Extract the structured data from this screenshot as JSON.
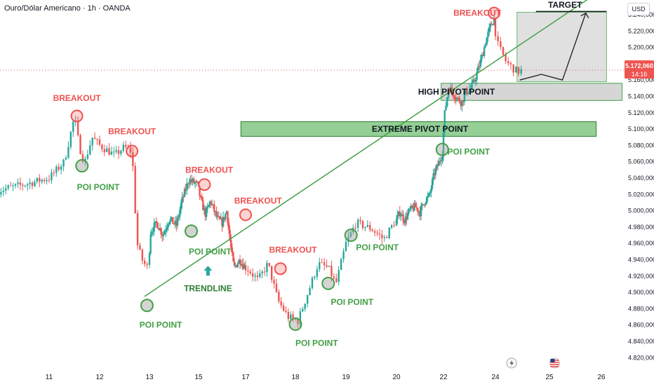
{
  "header": {
    "title": "Ouro/Dólar Americano · 1h · OANDA"
  },
  "currency": "USD",
  "colors": {
    "up": "#26a69a",
    "down": "#ef5350",
    "breakout": "#ef5350",
    "poi": "#43a047",
    "trendline": "#43a047",
    "pivot": "#c8c8c8",
    "extreme": "#81c784",
    "target_box": "#e0e0e0"
  },
  "price_badge": {
    "price": "5.172,060",
    "countdown": "14:16"
  },
  "icons": {
    "flash": "lightning-icon",
    "flag": "us-flag-icon",
    "arrow": "arrow-up-icon"
  },
  "chart_data": {
    "type": "candlestick",
    "title": "",
    "xlabel": "",
    "ylabel": "",
    "ylim": [
      4810,
      5258
    ],
    "y_ticks": [
      "4.820,000",
      "4.840,000",
      "4.860,000",
      "4.880,000",
      "4.900,000",
      "4.920,000",
      "4.940,000",
      "4.960,000",
      "4.980,000",
      "5.000,000",
      "5.020,000",
      "5.040,000",
      "5.060,000",
      "5.080,000",
      "5.100,000",
      "5.120,000",
      "5.140,000",
      "5.160,000",
      "5.180,000",
      "5.200,000",
      "5.220,000",
      "5.240,000"
    ],
    "y_tick_values": [
      4820,
      4840,
      4860,
      4880,
      4900,
      4920,
      4940,
      4960,
      4980,
      5000,
      5020,
      5040,
      5060,
      5080,
      5100,
      5120,
      5140,
      5160,
      5180,
      5200,
      5220,
      5240
    ],
    "x_ticks": [
      "11",
      "12",
      "13",
      "15",
      "17",
      "18",
      "19",
      "20",
      "22",
      "24",
      "25",
      "26"
    ],
    "x_tick_days": [
      11,
      12,
      13,
      15,
      17,
      18,
      19,
      20,
      22,
      24,
      25,
      26
    ],
    "current_price": 5172.06,
    "path_keypoints": [
      [
        10.0,
        5025
      ],
      [
        10.5,
        5032
      ],
      [
        11.0,
        5040
      ],
      [
        11.3,
        5060
      ],
      [
        11.5,
        5115
      ],
      [
        11.6,
        5078
      ],
      [
        11.7,
        5058
      ],
      [
        11.85,
        5090
      ],
      [
        12.0,
        5080
      ],
      [
        12.3,
        5068
      ],
      [
        12.5,
        5078
      ],
      [
        12.65,
        5072
      ],
      [
        12.75,
        4960
      ],
      [
        12.85,
        4940
      ],
      [
        12.95,
        4930
      ],
      [
        13.05,
        4975
      ],
      [
        13.3,
        4985
      ],
      [
        13.55,
        4970
      ],
      [
        13.8,
        4990
      ],
      [
        14.1,
        4982
      ],
      [
        14.3,
        5010
      ],
      [
        14.6,
        5038
      ],
      [
        14.95,
        5032
      ],
      [
        15.1,
        5012
      ],
      [
        15.3,
        4995
      ],
      [
        15.5,
        5012
      ],
      [
        15.8,
        4990
      ],
      [
        16.0,
        4985
      ],
      [
        16.2,
        5000
      ],
      [
        16.35,
        4960
      ],
      [
        16.5,
        4930
      ],
      [
        16.75,
        4940
      ],
      [
        17.05,
        4928
      ],
      [
        17.25,
        4915
      ],
      [
        17.45,
        4935
      ],
      [
        17.65,
        4890
      ],
      [
        17.85,
        4870
      ],
      [
        18.05,
        4865
      ],
      [
        18.25,
        4900
      ],
      [
        18.45,
        4935
      ],
      [
        18.65,
        4930
      ],
      [
        18.8,
        4910
      ],
      [
        19.0,
        4960
      ],
      [
        19.2,
        4985
      ],
      [
        19.5,
        4978
      ],
      [
        19.75,
        4965
      ],
      [
        19.95,
        4985
      ],
      [
        20.15,
        4998
      ],
      [
        20.35,
        4988
      ],
      [
        20.55,
        5000
      ],
      [
        20.8,
        5005
      ],
      [
        21.0,
        4998
      ],
      [
        21.2,
        5012
      ],
      [
        21.4,
        5018
      ],
      [
        21.6,
        5045
      ],
      [
        21.8,
        5058
      ],
      [
        21.95,
        5070
      ],
      [
        22.05,
        5120
      ],
      [
        22.2,
        5152
      ],
      [
        22.45,
        5140
      ],
      [
        22.7,
        5132
      ],
      [
        22.85,
        5145
      ],
      [
        23.05,
        5150
      ],
      [
        23.2,
        5160
      ],
      [
        23.45,
        5185
      ],
      [
        23.65,
        5210
      ],
      [
        23.8,
        5225
      ],
      [
        23.95,
        5235
      ],
      [
        24.05,
        5202
      ],
      [
        24.2,
        5182
      ],
      [
        24.4,
        5170
      ],
      [
        24.5,
        5172
      ]
    ],
    "projection": [
      [
        24.45,
        5160
      ],
      [
        24.85,
        5167
      ],
      [
        25.25,
        5160
      ],
      [
        25.7,
        5242
      ]
    ],
    "trendline": [
      [
        12.9,
        4895
      ],
      [
        26.0,
        5270
      ]
    ],
    "zones": [
      {
        "name": "HIGH PIVOT POINT",
        "x1": 21.9,
        "x2": 26.4,
        "y1": 5135,
        "y2": 5156
      },
      {
        "name": "EXTREME PIVOT POINT",
        "x1": 16.8,
        "x2": 25.9,
        "y1": 5091,
        "y2": 5109
      }
    ],
    "target_box": {
      "x1": 24.4,
      "x2": 26.1,
      "y1": 5158,
      "y2": 5243
    },
    "annotations": [
      {
        "label": "BREAKOUT",
        "kind": "breakout",
        "day": 11.55,
        "price": 5116,
        "text_day": 11.55,
        "text_price": 5138,
        "anchor": "middle"
      },
      {
        "label": "BREAKOUT",
        "kind": "breakout",
        "day": 12.65,
        "price": 5073,
        "text_day": 12.65,
        "text_price": 5097,
        "anchor": "middle"
      },
      {
        "label": "BREAKOUT",
        "kind": "breakout",
        "day": 15.25,
        "price": 5032,
        "text_day": 15.45,
        "text_price": 5050,
        "anchor": "middle"
      },
      {
        "label": "BREAKOUT",
        "kind": "breakout",
        "day": 17.0,
        "price": 4995,
        "text_day": 17.25,
        "text_price": 5012,
        "anchor": "middle"
      },
      {
        "label": "BREAKOUT",
        "kind": "breakout",
        "day": 17.7,
        "price": 4929,
        "text_day": 17.95,
        "text_price": 4952,
        "anchor": "middle"
      },
      {
        "label": "BREAKOUT",
        "kind": "breakout",
        "day": 23.95,
        "price": 5242,
        "text_day": 23.3,
        "text_price": 5242,
        "anchor": "middle"
      },
      {
        "label": "POI POINT",
        "kind": "poi",
        "day": 11.65,
        "price": 5055,
        "text_day": 11.55,
        "text_price": 5029,
        "anchor": "start"
      },
      {
        "label": "POI POINT",
        "kind": "poi",
        "day": 14.7,
        "price": 4975,
        "text_day": 14.6,
        "text_price": 4950,
        "anchor": "start"
      },
      {
        "label": "POI POINT",
        "kind": "poi",
        "day": 12.95,
        "price": 4884,
        "text_day": 12.8,
        "text_price": 4860,
        "anchor": "start"
      },
      {
        "label": "POI POINT",
        "kind": "poi",
        "day": 19.1,
        "price": 4970,
        "text_day": 19.2,
        "text_price": 4955,
        "anchor": "start"
      },
      {
        "label": "POI POINT",
        "kind": "poi",
        "day": 18.65,
        "price": 4911,
        "text_day": 18.7,
        "text_price": 4888,
        "anchor": "start"
      },
      {
        "label": "POI POINT",
        "kind": "poi",
        "day": 18.0,
        "price": 4861,
        "text_day": 18.0,
        "text_price": 4838,
        "anchor": "start"
      },
      {
        "label": "POI POINT",
        "kind": "poi",
        "day": 21.95,
        "price": 5075,
        "text_day": 22.15,
        "text_price": 5072,
        "anchor": "start"
      }
    ],
    "trendline_label": {
      "label": "TRENDLINE",
      "day": 15.4,
      "price": 4905
    },
    "target_label": {
      "label": "TARGET",
      "day": 25.3,
      "price": 5252
    }
  }
}
